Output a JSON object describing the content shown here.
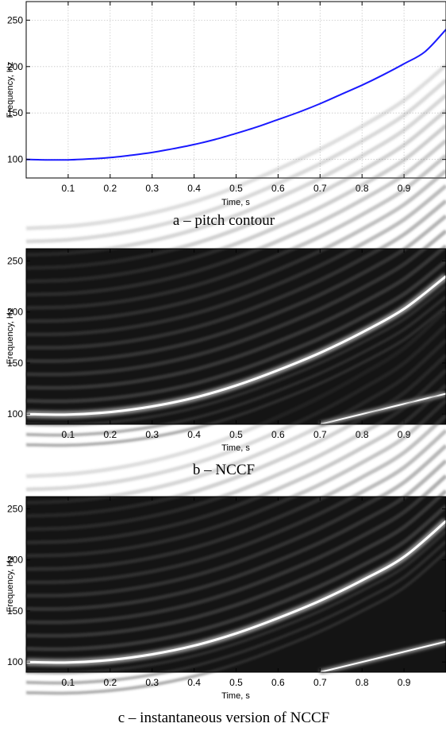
{
  "chart_data": [
    {
      "type": "line",
      "caption": "a – pitch contour",
      "xlabel": "Time, s",
      "ylabel": "Frequency, Hz",
      "xlim": [
        0,
        1
      ],
      "ylim": [
        80,
        270
      ],
      "xticks": [
        0.1,
        0.2,
        0.3,
        0.4,
        0.5,
        0.6,
        0.7,
        0.8,
        0.9
      ],
      "yticks": [
        100,
        150,
        200,
        250
      ],
      "grid": true,
      "series": [
        {
          "color": "#1a1aff",
          "x": [
            0.0,
            0.05,
            0.1,
            0.15,
            0.2,
            0.25,
            0.3,
            0.35,
            0.4,
            0.45,
            0.5,
            0.55,
            0.6,
            0.65,
            0.7,
            0.75,
            0.8,
            0.85,
            0.9,
            0.95,
            1.0
          ],
          "y": [
            100,
            99.5,
            99.5,
            100.5,
            102,
            104.5,
            107.5,
            111.5,
            116,
            121.5,
            128,
            135,
            143,
            151,
            160,
            170,
            180,
            191,
            203,
            216,
            240
          ]
        }
      ]
    },
    {
      "type": "heatmap",
      "caption": "b – NCCF",
      "xlabel": "Time, s",
      "ylabel": "Frequency, Hz",
      "xlim": [
        0,
        1
      ],
      "ylim": [
        90,
        262
      ],
      "xticks": [
        0.1,
        0.2,
        0.3,
        0.4,
        0.5,
        0.6,
        0.7,
        0.8,
        0.9
      ],
      "yticks": [
        100,
        150,
        200,
        250
      ],
      "colormap": "gray",
      "ridges": [
        {
          "x": [
            0.0,
            0.1,
            0.2,
            0.3,
            0.4,
            0.5,
            0.6,
            0.7,
            0.8,
            0.9,
            1.0
          ],
          "y": [
            100,
            99.5,
            102,
            107.5,
            116,
            128,
            143,
            160,
            180,
            203,
            235
          ]
        },
        {
          "x": [
            0.7,
            0.8,
            0.9,
            1.0
          ],
          "y": [
            90,
            100,
            110,
            120
          ]
        }
      ]
    },
    {
      "type": "heatmap",
      "caption": "c – instantaneous version of NCCF",
      "xlabel": "Time, s",
      "ylabel": "Frequency, Hz",
      "xlim": [
        0,
        1
      ],
      "ylim": [
        90,
        262
      ],
      "xticks": [
        0.1,
        0.2,
        0.3,
        0.4,
        0.5,
        0.6,
        0.7,
        0.8,
        0.9
      ],
      "yticks": [
        100,
        150,
        200,
        250
      ],
      "colormap": "gray",
      "ridges": [
        {
          "x": [
            0.0,
            0.1,
            0.2,
            0.3,
            0.4,
            0.5,
            0.6,
            0.7,
            0.8,
            0.9,
            1.0
          ],
          "y": [
            100,
            99.5,
            102,
            107.5,
            116,
            128,
            143,
            160,
            180,
            203,
            238
          ]
        },
        {
          "x": [
            0.7,
            0.8,
            0.9,
            1.0
          ],
          "y": [
            90,
            100,
            110,
            120
          ]
        }
      ]
    }
  ]
}
